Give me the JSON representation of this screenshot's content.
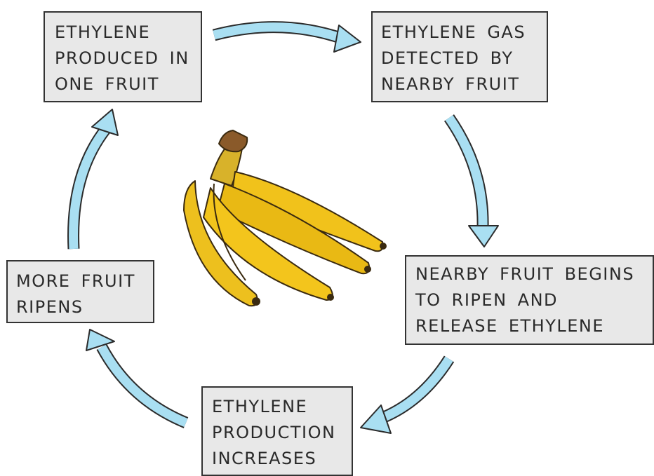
{
  "nodes": [
    {
      "lines": [
        "ETHYLENE",
        "PRODUCED IN",
        "ONE FRUIT"
      ]
    },
    {
      "lines": [
        "ETHYLENE GAS",
        "DETECTED BY",
        "NEARBY FRUIT"
      ]
    },
    {
      "lines": [
        "NEARBY FRUIT BEGINS",
        "TO RIPEN AND",
        "RELEASE ETHYLENE"
      ]
    },
    {
      "lines": [
        "ETHYLENE",
        "PRODUCTION",
        "INCREASES"
      ]
    },
    {
      "lines": [
        "MORE FRUIT",
        "RIPENS"
      ]
    }
  ]
}
